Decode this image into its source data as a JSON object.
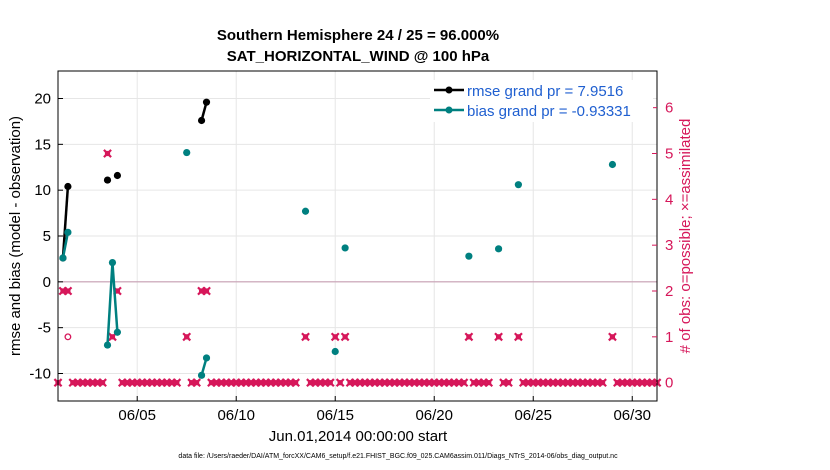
{
  "chart_data": {
    "type": "line",
    "title": "Southern Hemisphere 24 / 25 = 96.000%",
    "subtitle": "SAT_HORIZONTAL_WIND @ 100 hPa",
    "xlabel": "Jun.01,2014 00:00:00 start",
    "ylabel_left": "rmse and bias (model - observation)",
    "ylabel_right": "# of obs: o=possible; ×=assimilated",
    "footer": "data file: /Users/raeder/DAI/ATM_forcXX/CAM6_setup/f.e21.FHIST_BGC.f09_025.CAM6assim.011/Diags_NTrS_2014-06/obs_diag_output.nc",
    "xlim": [
      1.0,
      31.25
    ],
    "ylim": [
      -13,
      23
    ],
    "ylim_right": [
      -0.4,
      6.8
    ],
    "x_ticks": [
      {
        "value": 5,
        "label": "06/05"
      },
      {
        "value": 10,
        "label": "06/10"
      },
      {
        "value": 15,
        "label": "06/15"
      },
      {
        "value": 20,
        "label": "06/20"
      },
      {
        "value": 25,
        "label": "06/25"
      },
      {
        "value": 30,
        "label": "06/30"
      }
    ],
    "y_ticks": [
      {
        "value": -10,
        "label": "-10"
      },
      {
        "value": -5,
        "label": "-5"
      },
      {
        "value": 0,
        "label": "0"
      },
      {
        "value": 5,
        "label": "5"
      },
      {
        "value": 10,
        "label": "10"
      },
      {
        "value": 15,
        "label": "15"
      },
      {
        "value": 20,
        "label": "20"
      }
    ],
    "y_ticks_right": [
      {
        "value": 0,
        "label": "0"
      },
      {
        "value": 1,
        "label": "1"
      },
      {
        "value": 2,
        "label": "2"
      },
      {
        "value": 3,
        "label": "3"
      },
      {
        "value": 4,
        "label": "4"
      },
      {
        "value": 5,
        "label": "5"
      },
      {
        "value": 6,
        "label": "6"
      }
    ],
    "grid": true,
    "legend_position": "top-right",
    "zero_line": 0,
    "series": [
      {
        "name": "rmse grand pr = 7.9516",
        "color": "#000000",
        "segments": [
          [
            [
              1.25,
              2.6
            ],
            [
              1.5,
              10.4
            ]
          ],
          [
            [
              3.5,
              11.1
            ]
          ],
          [
            [
              4.0,
              11.6
            ]
          ],
          [
            [
              8.25,
              17.6
            ],
            [
              8.5,
              19.6
            ]
          ]
        ]
      },
      {
        "name": "bias grand pr = -0.93331",
        "color": "#008080",
        "segments": [
          [
            [
              1.25,
              2.6
            ],
            [
              1.5,
              5.4
            ]
          ],
          [
            [
              3.5,
              -6.9
            ],
            [
              3.75,
              2.1
            ],
            [
              4.0,
              -5.5
            ]
          ],
          [
            [
              7.5,
              14.1
            ]
          ],
          [
            [
              8.25,
              -10.2
            ],
            [
              8.5,
              -8.3
            ]
          ],
          [
            [
              13.5,
              7.7
            ]
          ],
          [
            [
              15.0,
              -7.6
            ]
          ],
          [
            [
              15.5,
              3.7
            ]
          ],
          [
            [
              21.75,
              2.8
            ]
          ],
          [
            [
              23.25,
              3.6
            ]
          ],
          [
            [
              24.25,
              10.6
            ]
          ],
          [
            [
              29.0,
              12.8
            ]
          ]
        ]
      }
    ],
    "obs_possible": {
      "color": "#d6175a",
      "points": [
        [
          1.5,
          1
        ]
      ]
    },
    "obs_assimilated": {
      "color": "#d6175a",
      "counts_by_time": [
        {
          "x": 1.0,
          "n": 0
        },
        {
          "x": 1.25,
          "n": 2
        },
        {
          "x": 1.5,
          "n": 2
        },
        {
          "x": 1.75,
          "n": 0
        },
        {
          "x": 2.0,
          "n": 0
        },
        {
          "x": 2.25,
          "n": 0
        },
        {
          "x": 2.5,
          "n": 0
        },
        {
          "x": 2.75,
          "n": 0
        },
        {
          "x": 3.0,
          "n": 0
        },
        {
          "x": 3.25,
          "n": 0
        },
        {
          "x": 3.5,
          "n": 5
        },
        {
          "x": 3.75,
          "n": 1
        },
        {
          "x": 4.0,
          "n": 2
        },
        {
          "x": 4.25,
          "n": 0
        },
        {
          "x": 4.5,
          "n": 0
        },
        {
          "x": 4.75,
          "n": 0
        },
        {
          "x": 5.0,
          "n": 0
        },
        {
          "x": 5.25,
          "n": 0
        },
        {
          "x": 5.5,
          "n": 0
        },
        {
          "x": 5.75,
          "n": 0
        },
        {
          "x": 6.0,
          "n": 0
        },
        {
          "x": 6.25,
          "n": 0
        },
        {
          "x": 6.5,
          "n": 0
        },
        {
          "x": 6.75,
          "n": 0
        },
        {
          "x": 7.0,
          "n": 0
        },
        {
          "x": 7.5,
          "n": 1
        },
        {
          "x": 7.75,
          "n": 0
        },
        {
          "x": 8.0,
          "n": 0
        },
        {
          "x": 8.25,
          "n": 2
        },
        {
          "x": 8.5,
          "n": 2
        },
        {
          "x": 8.75,
          "n": 0
        },
        {
          "x": 9.0,
          "n": 0
        },
        {
          "x": 9.25,
          "n": 0
        },
        {
          "x": 9.5,
          "n": 0
        },
        {
          "x": 9.75,
          "n": 0
        },
        {
          "x": 10.0,
          "n": 0
        },
        {
          "x": 10.25,
          "n": 0
        },
        {
          "x": 10.5,
          "n": 0
        },
        {
          "x": 10.75,
          "n": 0
        },
        {
          "x": 11.0,
          "n": 0
        },
        {
          "x": 11.25,
          "n": 0
        },
        {
          "x": 11.5,
          "n": 0
        },
        {
          "x": 11.75,
          "n": 0
        },
        {
          "x": 12.0,
          "n": 0
        },
        {
          "x": 12.25,
          "n": 0
        },
        {
          "x": 12.5,
          "n": 0
        },
        {
          "x": 12.75,
          "n": 0
        },
        {
          "x": 13.0,
          "n": 0
        },
        {
          "x": 13.5,
          "n": 1
        },
        {
          "x": 13.75,
          "n": 0
        },
        {
          "x": 14.0,
          "n": 0
        },
        {
          "x": 14.25,
          "n": 0
        },
        {
          "x": 14.5,
          "n": 0
        },
        {
          "x": 14.75,
          "n": 0
        },
        {
          "x": 15.0,
          "n": 1
        },
        {
          "x": 15.25,
          "n": 0
        },
        {
          "x": 15.5,
          "n": 1
        },
        {
          "x": 15.75,
          "n": 0
        },
        {
          "x": 16.0,
          "n": 0
        },
        {
          "x": 16.25,
          "n": 0
        },
        {
          "x": 16.5,
          "n": 0
        },
        {
          "x": 16.75,
          "n": 0
        },
        {
          "x": 17.0,
          "n": 0
        },
        {
          "x": 17.25,
          "n": 0
        },
        {
          "x": 17.5,
          "n": 0
        },
        {
          "x": 17.75,
          "n": 0
        },
        {
          "x": 18.0,
          "n": 0
        },
        {
          "x": 18.25,
          "n": 0
        },
        {
          "x": 18.5,
          "n": 0
        },
        {
          "x": 18.75,
          "n": 0
        },
        {
          "x": 19.0,
          "n": 0
        },
        {
          "x": 19.25,
          "n": 0
        },
        {
          "x": 19.5,
          "n": 0
        },
        {
          "x": 19.75,
          "n": 0
        },
        {
          "x": 20.0,
          "n": 0
        },
        {
          "x": 20.25,
          "n": 0
        },
        {
          "x": 20.5,
          "n": 0
        },
        {
          "x": 20.75,
          "n": 0
        },
        {
          "x": 21.0,
          "n": 0
        },
        {
          "x": 21.25,
          "n": 0
        },
        {
          "x": 21.5,
          "n": 0
        },
        {
          "x": 21.75,
          "n": 1
        },
        {
          "x": 22.0,
          "n": 0
        },
        {
          "x": 22.25,
          "n": 0
        },
        {
          "x": 22.5,
          "n": 0
        },
        {
          "x": 22.75,
          "n": 0
        },
        {
          "x": 23.25,
          "n": 1
        },
        {
          "x": 23.5,
          "n": 0
        },
        {
          "x": 23.75,
          "n": 0
        },
        {
          "x": 24.25,
          "n": 1
        },
        {
          "x": 24.5,
          "n": 0
        },
        {
          "x": 24.75,
          "n": 0
        },
        {
          "x": 25.0,
          "n": 0
        },
        {
          "x": 25.25,
          "n": 0
        },
        {
          "x": 25.5,
          "n": 0
        },
        {
          "x": 25.75,
          "n": 0
        },
        {
          "x": 26.0,
          "n": 0
        },
        {
          "x": 26.25,
          "n": 0
        },
        {
          "x": 26.5,
          "n": 0
        },
        {
          "x": 26.75,
          "n": 0
        },
        {
          "x": 27.0,
          "n": 0
        },
        {
          "x": 27.25,
          "n": 0
        },
        {
          "x": 27.5,
          "n": 0
        },
        {
          "x": 27.75,
          "n": 0
        },
        {
          "x": 28.0,
          "n": 0
        },
        {
          "x": 28.25,
          "n": 0
        },
        {
          "x": 28.5,
          "n": 0
        },
        {
          "x": 29.0,
          "n": 1
        },
        {
          "x": 29.25,
          "n": 0
        },
        {
          "x": 29.5,
          "n": 0
        },
        {
          "x": 29.75,
          "n": 0
        },
        {
          "x": 30.0,
          "n": 0
        },
        {
          "x": 30.25,
          "n": 0
        },
        {
          "x": 30.5,
          "n": 0
        },
        {
          "x": 30.75,
          "n": 0
        },
        {
          "x": 31.0,
          "n": 0
        },
        {
          "x": 31.25,
          "n": 0
        }
      ]
    }
  }
}
